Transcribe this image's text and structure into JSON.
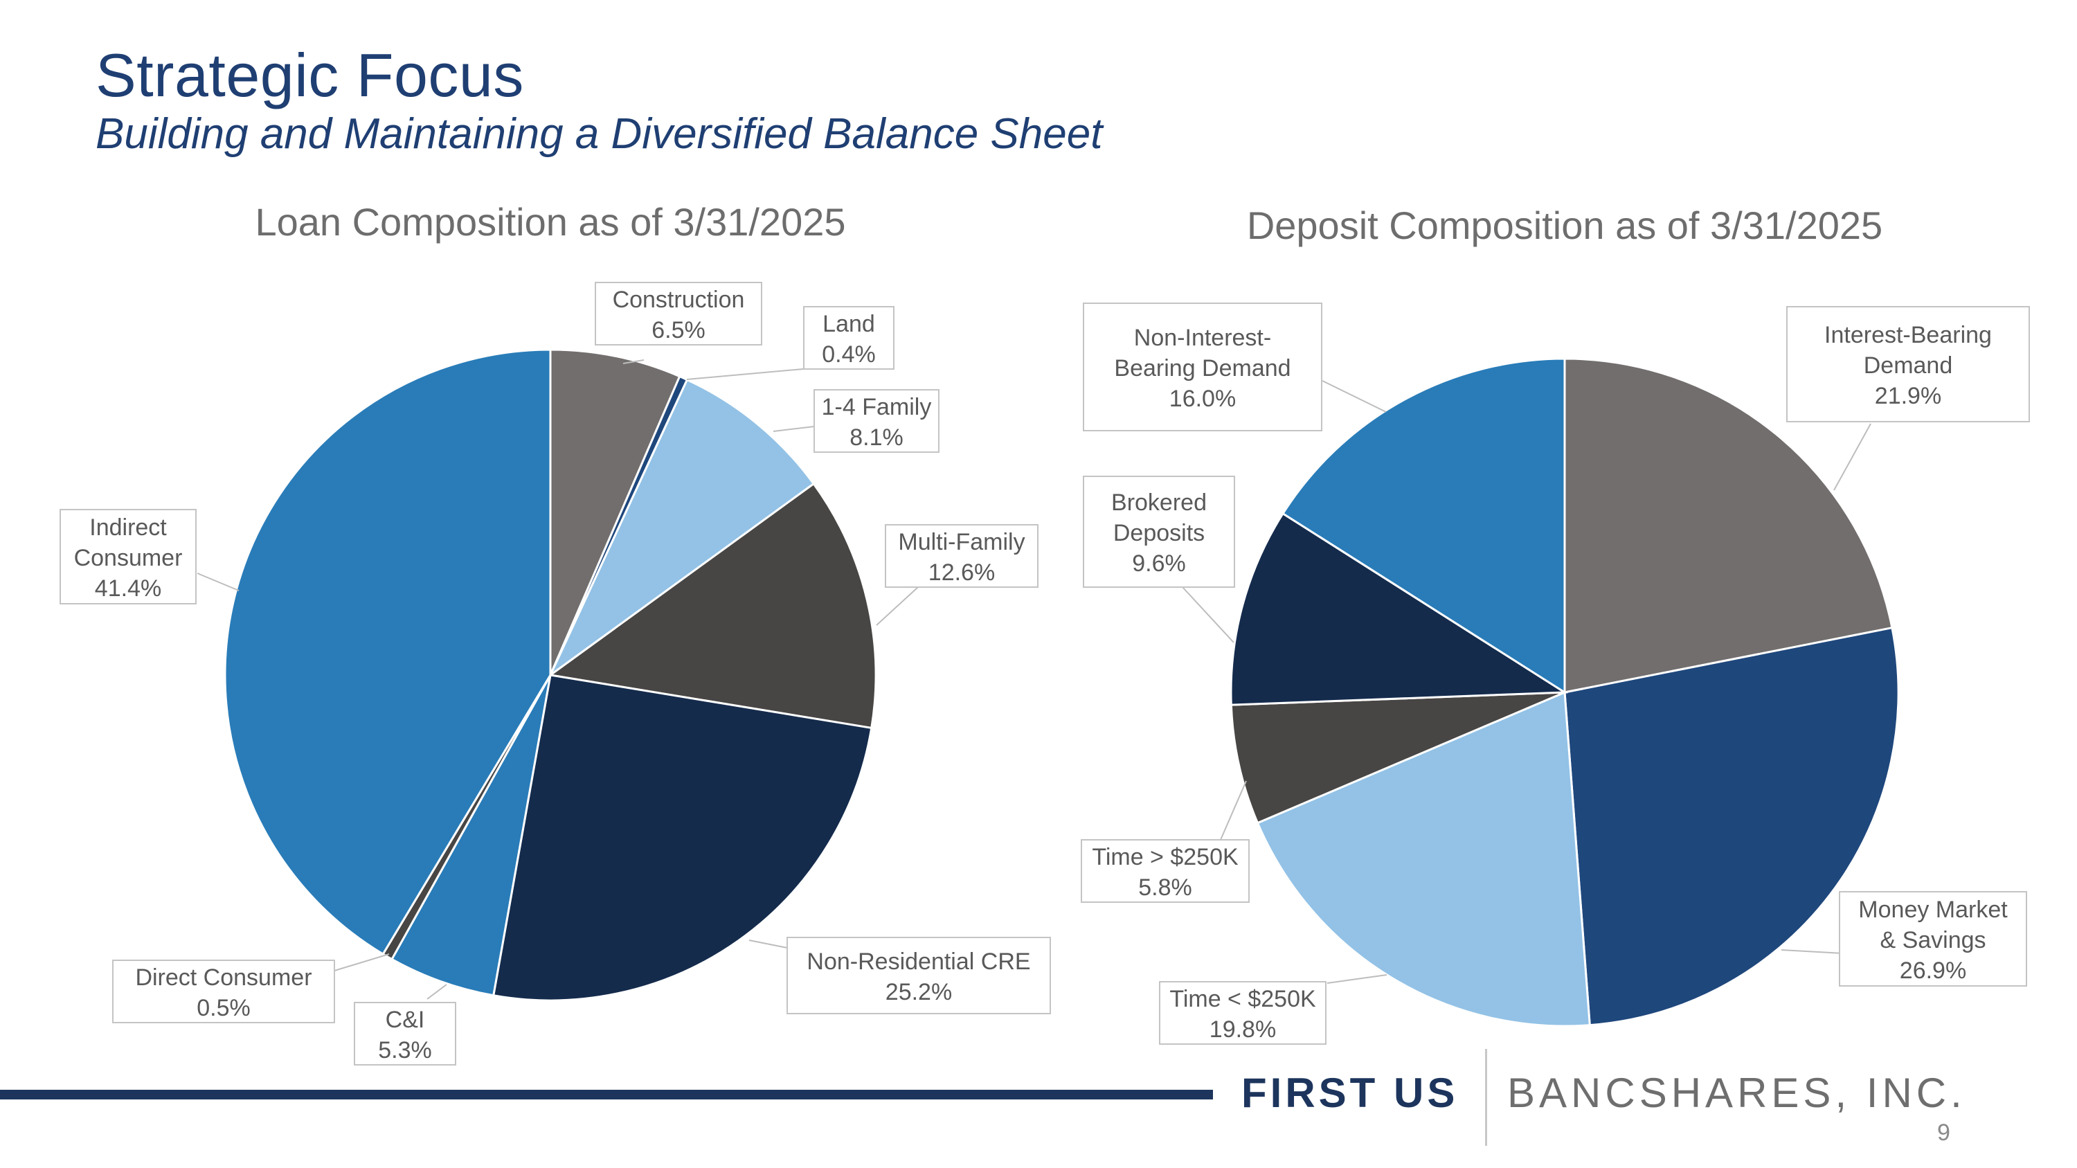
{
  "slide": {
    "title": "Strategic Focus",
    "subtitle": "Building and Maintaining a Diversified Balance Sheet",
    "page_number": "9"
  },
  "brand": {
    "name_bold": "FIRST US",
    "name_light": "BANCSHARES, INC.",
    "color_navy": "#1d355d"
  },
  "chart_data": [
    {
      "type": "pie",
      "title": "Loan Composition as of 3/31/2025",
      "start": "12 o'clock, clockwise",
      "slices": [
        {
          "label": [
            "Construction"
          ],
          "value": 6.5,
          "value_label": "6.5%",
          "color": "#726e6d"
        },
        {
          "label": [
            "Land"
          ],
          "value": 0.4,
          "value_label": "0.4%",
          "color": "#1e477c"
        },
        {
          "label": [
            "1-4 Family"
          ],
          "value": 8.1,
          "value_label": "8.1%",
          "color": "#93c2e6"
        },
        {
          "label": [
            "Multi-Family"
          ],
          "value": 12.6,
          "value_label": "12.6%",
          "color": "#484644"
        },
        {
          "label": [
            "Non-Residential CRE"
          ],
          "value": 25.2,
          "value_label": "25.2%",
          "color": "#142b4c"
        },
        {
          "label": [
            "C&I"
          ],
          "value": 5.3,
          "value_label": "5.3%",
          "color": "#297cb8"
        },
        {
          "label": [
            "Direct Consumer"
          ],
          "value": 0.5,
          "value_label": "0.5%",
          "color": "#484644"
        },
        {
          "label": [
            "Indirect",
            "Consumer"
          ],
          "value": 41.4,
          "value_label": "41.4%",
          "color": "#297cb8"
        }
      ]
    },
    {
      "type": "pie",
      "title": "Deposit Composition as of 3/31/2025",
      "start": "12 o'clock, clockwise",
      "slices": [
        {
          "label": [
            "Interest-Bearing",
            "Demand"
          ],
          "value": 21.9,
          "value_label": "21.9%",
          "color": "#726e6d"
        },
        {
          "label": [
            "Money Market",
            "& Savings"
          ],
          "value": 26.9,
          "value_label": "26.9%",
          "color": "#1e477c"
        },
        {
          "label": [
            "Time < $250K"
          ],
          "value": 19.8,
          "value_label": "19.8%",
          "color": "#93c2e6"
        },
        {
          "label": [
            "Time > $250K"
          ],
          "value": 5.8,
          "value_label": "5.8%",
          "color": "#484644"
        },
        {
          "label": [
            "Brokered",
            "Deposits"
          ],
          "value": 9.6,
          "value_label": "9.6%",
          "color": "#142b4c"
        },
        {
          "label": [
            "Non-Interest-",
            "Bearing Demand"
          ],
          "value": 16.0,
          "value_label": "16.0%",
          "color": "#297cb8"
        }
      ]
    }
  ]
}
